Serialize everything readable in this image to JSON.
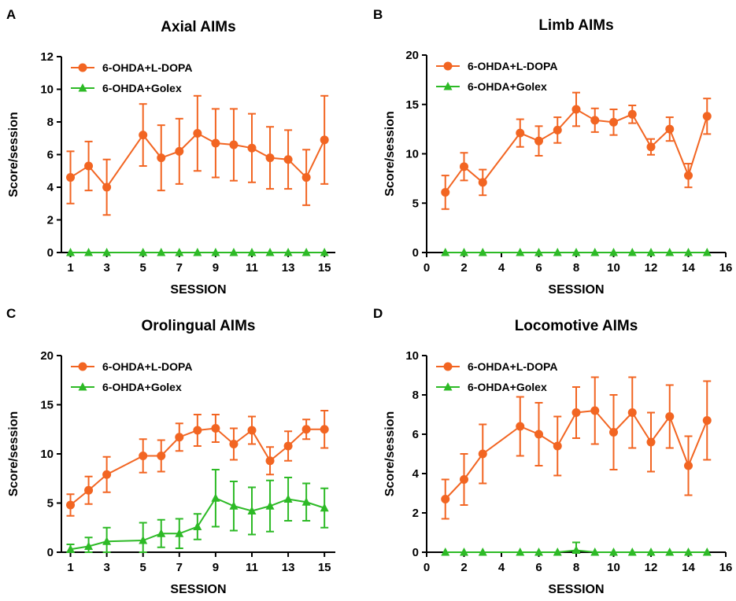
{
  "colors": {
    "ldopa": "#F26522",
    "golex": "#2DBA26",
    "axis": "#000000"
  },
  "chart_data": [
    {
      "panel": "A",
      "type": "line",
      "title": "Axial AIMs",
      "xlabel": "SESSION",
      "ylabel": "Score/session",
      "xlim": [
        0.5,
        15.6
      ],
      "ylim": [
        0,
        12
      ],
      "xticks": [
        1,
        3,
        5,
        7,
        9,
        11,
        13,
        15
      ],
      "yticks": [
        0,
        2,
        4,
        6,
        8,
        10,
        12
      ],
      "legend_position": "top-left",
      "x": [
        1,
        2,
        3,
        5,
        6,
        7,
        8,
        9,
        10,
        11,
        12,
        13,
        14,
        15
      ],
      "series": [
        {
          "name": "6-OHDA+L-DOPA",
          "marker": "circle",
          "values": [
            4.6,
            5.3,
            4.0,
            7.2,
            5.8,
            6.2,
            7.3,
            6.7,
            6.6,
            6.4,
            5.8,
            5.7,
            4.6,
            6.9
          ],
          "errors": [
            1.6,
            1.5,
            1.7,
            1.9,
            2.0,
            2.0,
            2.3,
            2.1,
            2.2,
            2.1,
            1.9,
            1.8,
            1.7,
            2.7
          ]
        },
        {
          "name": "6-OHDA+Golex",
          "marker": "triangle",
          "values": [
            0,
            0,
            0,
            0,
            0,
            0,
            0,
            0,
            0,
            0,
            0,
            0,
            0,
            0
          ],
          "errors": [
            0,
            0,
            0,
            0,
            0,
            0,
            0,
            0,
            0,
            0,
            0,
            0,
            0,
            0
          ]
        }
      ]
    },
    {
      "panel": "B",
      "type": "line",
      "title": "Limb AIMs",
      "xlabel": "SESSION",
      "ylabel": "Score/session",
      "xlim": [
        0,
        16
      ],
      "ylim": [
        0,
        20
      ],
      "xticks": [
        0,
        2,
        4,
        6,
        8,
        10,
        12,
        14,
        16
      ],
      "yticks": [
        0,
        5,
        10,
        15,
        20
      ],
      "legend_position": "top-left",
      "x": [
        1,
        2,
        3,
        5,
        6,
        7,
        8,
        9,
        10,
        11,
        12,
        13,
        14,
        15
      ],
      "series": [
        {
          "name": "6-OHDA+L-DOPA",
          "marker": "circle",
          "values": [
            6.1,
            8.7,
            7.1,
            12.1,
            11.3,
            12.4,
            14.5,
            13.4,
            13.2,
            14.0,
            10.7,
            12.5,
            7.8,
            13.8
          ],
          "errors": [
            1.7,
            1.4,
            1.3,
            1.4,
            1.5,
            1.3,
            1.7,
            1.2,
            1.3,
            0.9,
            0.8,
            1.2,
            1.2,
            1.8
          ]
        },
        {
          "name": "6-OHDA+Golex",
          "marker": "triangle",
          "values": [
            0,
            0,
            0,
            0,
            0,
            0,
            0,
            0,
            0,
            0,
            0,
            0,
            0,
            0
          ],
          "errors": [
            0,
            0,
            0,
            0,
            0,
            0,
            0,
            0,
            0,
            0,
            0,
            0,
            0,
            0
          ]
        }
      ]
    },
    {
      "panel": "C",
      "type": "line",
      "title": "Orolingual AIMs",
      "xlabel": "SESSION",
      "ylabel": "Score/session",
      "xlim": [
        0.5,
        15.6
      ],
      "ylim": [
        0,
        20
      ],
      "xticks": [
        1,
        3,
        5,
        7,
        9,
        11,
        13,
        15
      ],
      "yticks": [
        0,
        5,
        10,
        15,
        20
      ],
      "legend_position": "top-left",
      "x": [
        1,
        2,
        3,
        5,
        6,
        7,
        8,
        9,
        10,
        11,
        12,
        13,
        14,
        15
      ],
      "series": [
        {
          "name": "6-OHDA+L-DOPA",
          "marker": "circle",
          "values": [
            4.8,
            6.3,
            7.9,
            9.8,
            9.8,
            11.7,
            12.4,
            12.6,
            11.0,
            12.4,
            9.3,
            10.8,
            12.5,
            12.5
          ],
          "errors": [
            1.1,
            1.4,
            1.8,
            1.7,
            1.6,
            1.4,
            1.6,
            1.4,
            1.6,
            1.4,
            1.4,
            1.5,
            1.0,
            1.9
          ]
        },
        {
          "name": "6-OHDA+Golex",
          "marker": "triangle",
          "values": [
            0.3,
            0.6,
            1.1,
            1.2,
            1.9,
            1.9,
            2.6,
            5.5,
            4.7,
            4.2,
            4.7,
            5.4,
            5.1,
            4.5
          ],
          "errors": [
            0.5,
            0.9,
            1.4,
            1.8,
            1.4,
            1.5,
            1.3,
            2.9,
            2.5,
            2.4,
            2.6,
            2.2,
            1.9,
            2.0
          ]
        }
      ]
    },
    {
      "panel": "D",
      "type": "line",
      "title": "Locomotive AIMs",
      "xlabel": "SESSION",
      "ylabel": "Score/session",
      "xlim": [
        0,
        16
      ],
      "ylim": [
        0,
        10
      ],
      "xticks": [
        0,
        2,
        4,
        6,
        8,
        10,
        12,
        14,
        16
      ],
      "yticks": [
        0,
        2,
        4,
        6,
        8,
        10
      ],
      "legend_position": "top-left",
      "x": [
        1,
        2,
        3,
        5,
        6,
        7,
        8,
        9,
        10,
        11,
        12,
        13,
        14,
        15
      ],
      "series": [
        {
          "name": "6-OHDA+L-DOPA",
          "marker": "circle",
          "values": [
            2.7,
            3.7,
            5.0,
            6.4,
            6.0,
            5.4,
            7.1,
            7.2,
            6.1,
            7.1,
            5.6,
            6.9,
            4.4,
            6.7
          ],
          "errors": [
            1.0,
            1.3,
            1.5,
            1.5,
            1.6,
            1.5,
            1.3,
            1.7,
            1.9,
            1.8,
            1.5,
            1.6,
            1.5,
            2.0
          ]
        },
        {
          "name": "6-OHDA+Golex",
          "marker": "triangle",
          "values": [
            0,
            0,
            0,
            0,
            0,
            0,
            0.1,
            0,
            0,
            0,
            0,
            0,
            0,
            0
          ],
          "errors": [
            0,
            0,
            0,
            0,
            0,
            0,
            0.4,
            0,
            0,
            0,
            0,
            0,
            0,
            0
          ]
        }
      ]
    }
  ]
}
